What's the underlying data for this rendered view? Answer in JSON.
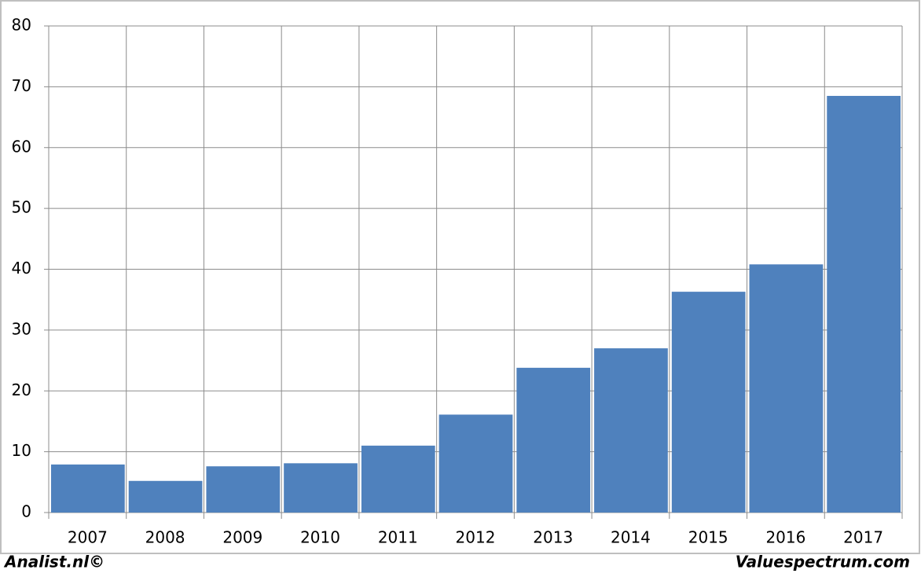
{
  "chart_data": {
    "type": "bar",
    "categories": [
      "2007",
      "2008",
      "2009",
      "2010",
      "2011",
      "2012",
      "2013",
      "2014",
      "2015",
      "2016",
      "2017"
    ],
    "values": [
      7.9,
      5.2,
      7.6,
      8.1,
      11.0,
      16.1,
      23.8,
      27.0,
      36.3,
      40.8,
      68.5
    ],
    "color": "#4f81bd",
    "ylim": [
      0,
      80
    ],
    "yticks": [
      0,
      10,
      20,
      30,
      40,
      50,
      60,
      70,
      80
    ],
    "grid": true
  },
  "footer": {
    "left": "Analist.nl©",
    "right": "Valuespectrum.com"
  }
}
